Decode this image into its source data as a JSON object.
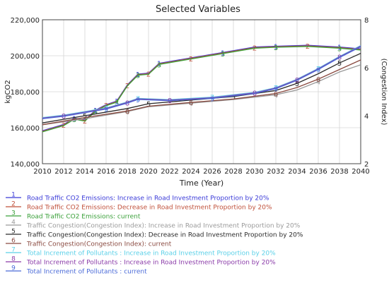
{
  "chart_data": {
    "type": "line",
    "title": "Selected Variables",
    "xlabel": "Time (Year)",
    "ylabel_left": "kgCO2",
    "ylabel_right": "(Congestion Index)",
    "xlim": [
      2010,
      2040
    ],
    "ylim_left": [
      140000,
      220000
    ],
    "ylim_right": [
      2,
      8
    ],
    "x_ticks": [
      "2010",
      "2012",
      "2014",
      "2016",
      "2018",
      "2020",
      "2022",
      "2024",
      "2026",
      "2028",
      "2030",
      "2032",
      "2034",
      "2036",
      "2038",
      "2040"
    ],
    "y_left_ticks": [
      "140,000",
      "160,000",
      "180,000",
      "200,000",
      "220,000"
    ],
    "y_right_ticks": [
      "2",
      "4",
      "6",
      "8"
    ],
    "grid": true,
    "legend_position": "bottom",
    "series": [
      {
        "name": "Road Traffic CO2 Emissions: Increase in Road Investment Proportion by 20%",
        "marker": "1",
        "color": "#3a3ad8",
        "axis": "left",
        "x": [
          2010,
          2012,
          2013,
          2014,
          2015,
          2016,
          2017,
          2018,
          2019,
          2020,
          2021,
          2024,
          2027,
          2030,
          2032,
          2035,
          2038,
          2040
        ],
        "y": [
          158000,
          161500,
          165000,
          164000,
          169500,
          172500,
          174500,
          183500,
          189500,
          190000,
          195500,
          198500,
          201500,
          204500,
          205000,
          205500,
          204500,
          203500
        ]
      },
      {
        "name": "Road Traffic CO2 Emissions: Decrease in Road Investment Proportion by 20%",
        "marker": "2",
        "color": "#c0503a",
        "axis": "left",
        "x": [
          2010,
          2012,
          2013,
          2014,
          2015,
          2016,
          2017,
          2018,
          2019,
          2020,
          2021,
          2024,
          2027,
          2030,
          2032,
          2035,
          2038,
          2040
        ],
        "y": [
          158000,
          161500,
          165000,
          164000,
          169500,
          172500,
          174500,
          183500,
          189500,
          190000,
          195500,
          198500,
          201500,
          204500,
          205000,
          205500,
          204500,
          203500
        ]
      },
      {
        "name": "Road Traffic CO2 Emissions: current",
        "marker": "3",
        "color": "#3aa03a",
        "axis": "left",
        "x": [
          2010,
          2012,
          2013,
          2014,
          2015,
          2016,
          2017,
          2018,
          2019,
          2020,
          2021,
          2024,
          2027,
          2030,
          2032,
          2035,
          2038,
          2040
        ],
        "y": [
          158000,
          161500,
          165000,
          164000,
          169500,
          172500,
          174500,
          183500,
          189500,
          190000,
          195500,
          198500,
          201500,
          204500,
          205000,
          205500,
          204500,
          203500
        ]
      },
      {
        "name": "Traffic Congestion(Congestion Index): Increase in Road Investment Proportion  by 20%",
        "marker": "4",
        "color": "#9a9a9a",
        "axis": "right",
        "x": [
          2010,
          2014,
          2018,
          2020,
          2024,
          2028,
          2032,
          2034,
          2036,
          2038,
          2040
        ],
        "y": [
          3.6,
          3.85,
          4.15,
          4.35,
          4.5,
          4.65,
          4.85,
          5.05,
          5.4,
          5.8,
          6.1
        ]
      },
      {
        "name": "Traffic Congestion(Congestion Index): Decrease in Road Investment Proportion  by 20%",
        "marker": "5",
        "color": "#2a2a2a",
        "axis": "right",
        "x": [
          2010,
          2014,
          2018,
          2020,
          2024,
          2028,
          2032,
          2034,
          2036,
          2038,
          2040
        ],
        "y": [
          3.7,
          4.0,
          4.3,
          4.5,
          4.65,
          4.8,
          5.05,
          5.35,
          5.75,
          6.2,
          6.6
        ]
      },
      {
        "name": "Traffic Congestion(Congestion Index): current",
        "marker": "6",
        "color": "#8a4a40",
        "axis": "right",
        "x": [
          2010,
          2014,
          2018,
          2020,
          2024,
          2028,
          2032,
          2034,
          2036,
          2038,
          2040
        ],
        "y": [
          3.65,
          3.95,
          4.22,
          4.42,
          4.58,
          4.72,
          4.95,
          5.2,
          5.55,
          5.95,
          6.35
        ]
      },
      {
        "name": "Total Increment of Pollutants :  Increase in Road Investment Proportion  by 20%",
        "marker": "7",
        "color": "#5ad0e8",
        "axis": "right",
        "x": [
          2010,
          2012,
          2016,
          2018,
          2019,
          2022,
          2026,
          2030,
          2032,
          2034,
          2036,
          2038,
          2040
        ],
        "y": [
          3.9,
          4.0,
          4.3,
          4.55,
          4.7,
          4.65,
          4.75,
          4.95,
          5.15,
          5.5,
          5.95,
          6.45,
          6.9
        ]
      },
      {
        "name": "Total Increment of Pollutants :  Increase in Road Investment Proportion  by 20%",
        "marker": "8",
        "color": "#8a3aa8",
        "axis": "right",
        "x": [
          2010,
          2012,
          2016,
          2018,
          2019,
          2022,
          2026,
          2030,
          2032,
          2034,
          2036,
          2038,
          2040
        ],
        "y": [
          3.9,
          4.0,
          4.3,
          4.55,
          4.7,
          4.65,
          4.75,
          4.95,
          5.15,
          5.5,
          5.95,
          6.45,
          6.9
        ]
      },
      {
        "name": "Total Increment of Pollutants : current",
        "marker": "9",
        "color": "#4a6ad8",
        "axis": "right",
        "x": [
          2010,
          2012,
          2016,
          2018,
          2019,
          2022,
          2026,
          2030,
          2032,
          2034,
          2036,
          2038,
          2040
        ],
        "y": [
          3.9,
          4.0,
          4.3,
          4.55,
          4.7,
          4.65,
          4.75,
          4.95,
          5.15,
          5.5,
          5.95,
          6.45,
          6.9
        ]
      }
    ]
  }
}
